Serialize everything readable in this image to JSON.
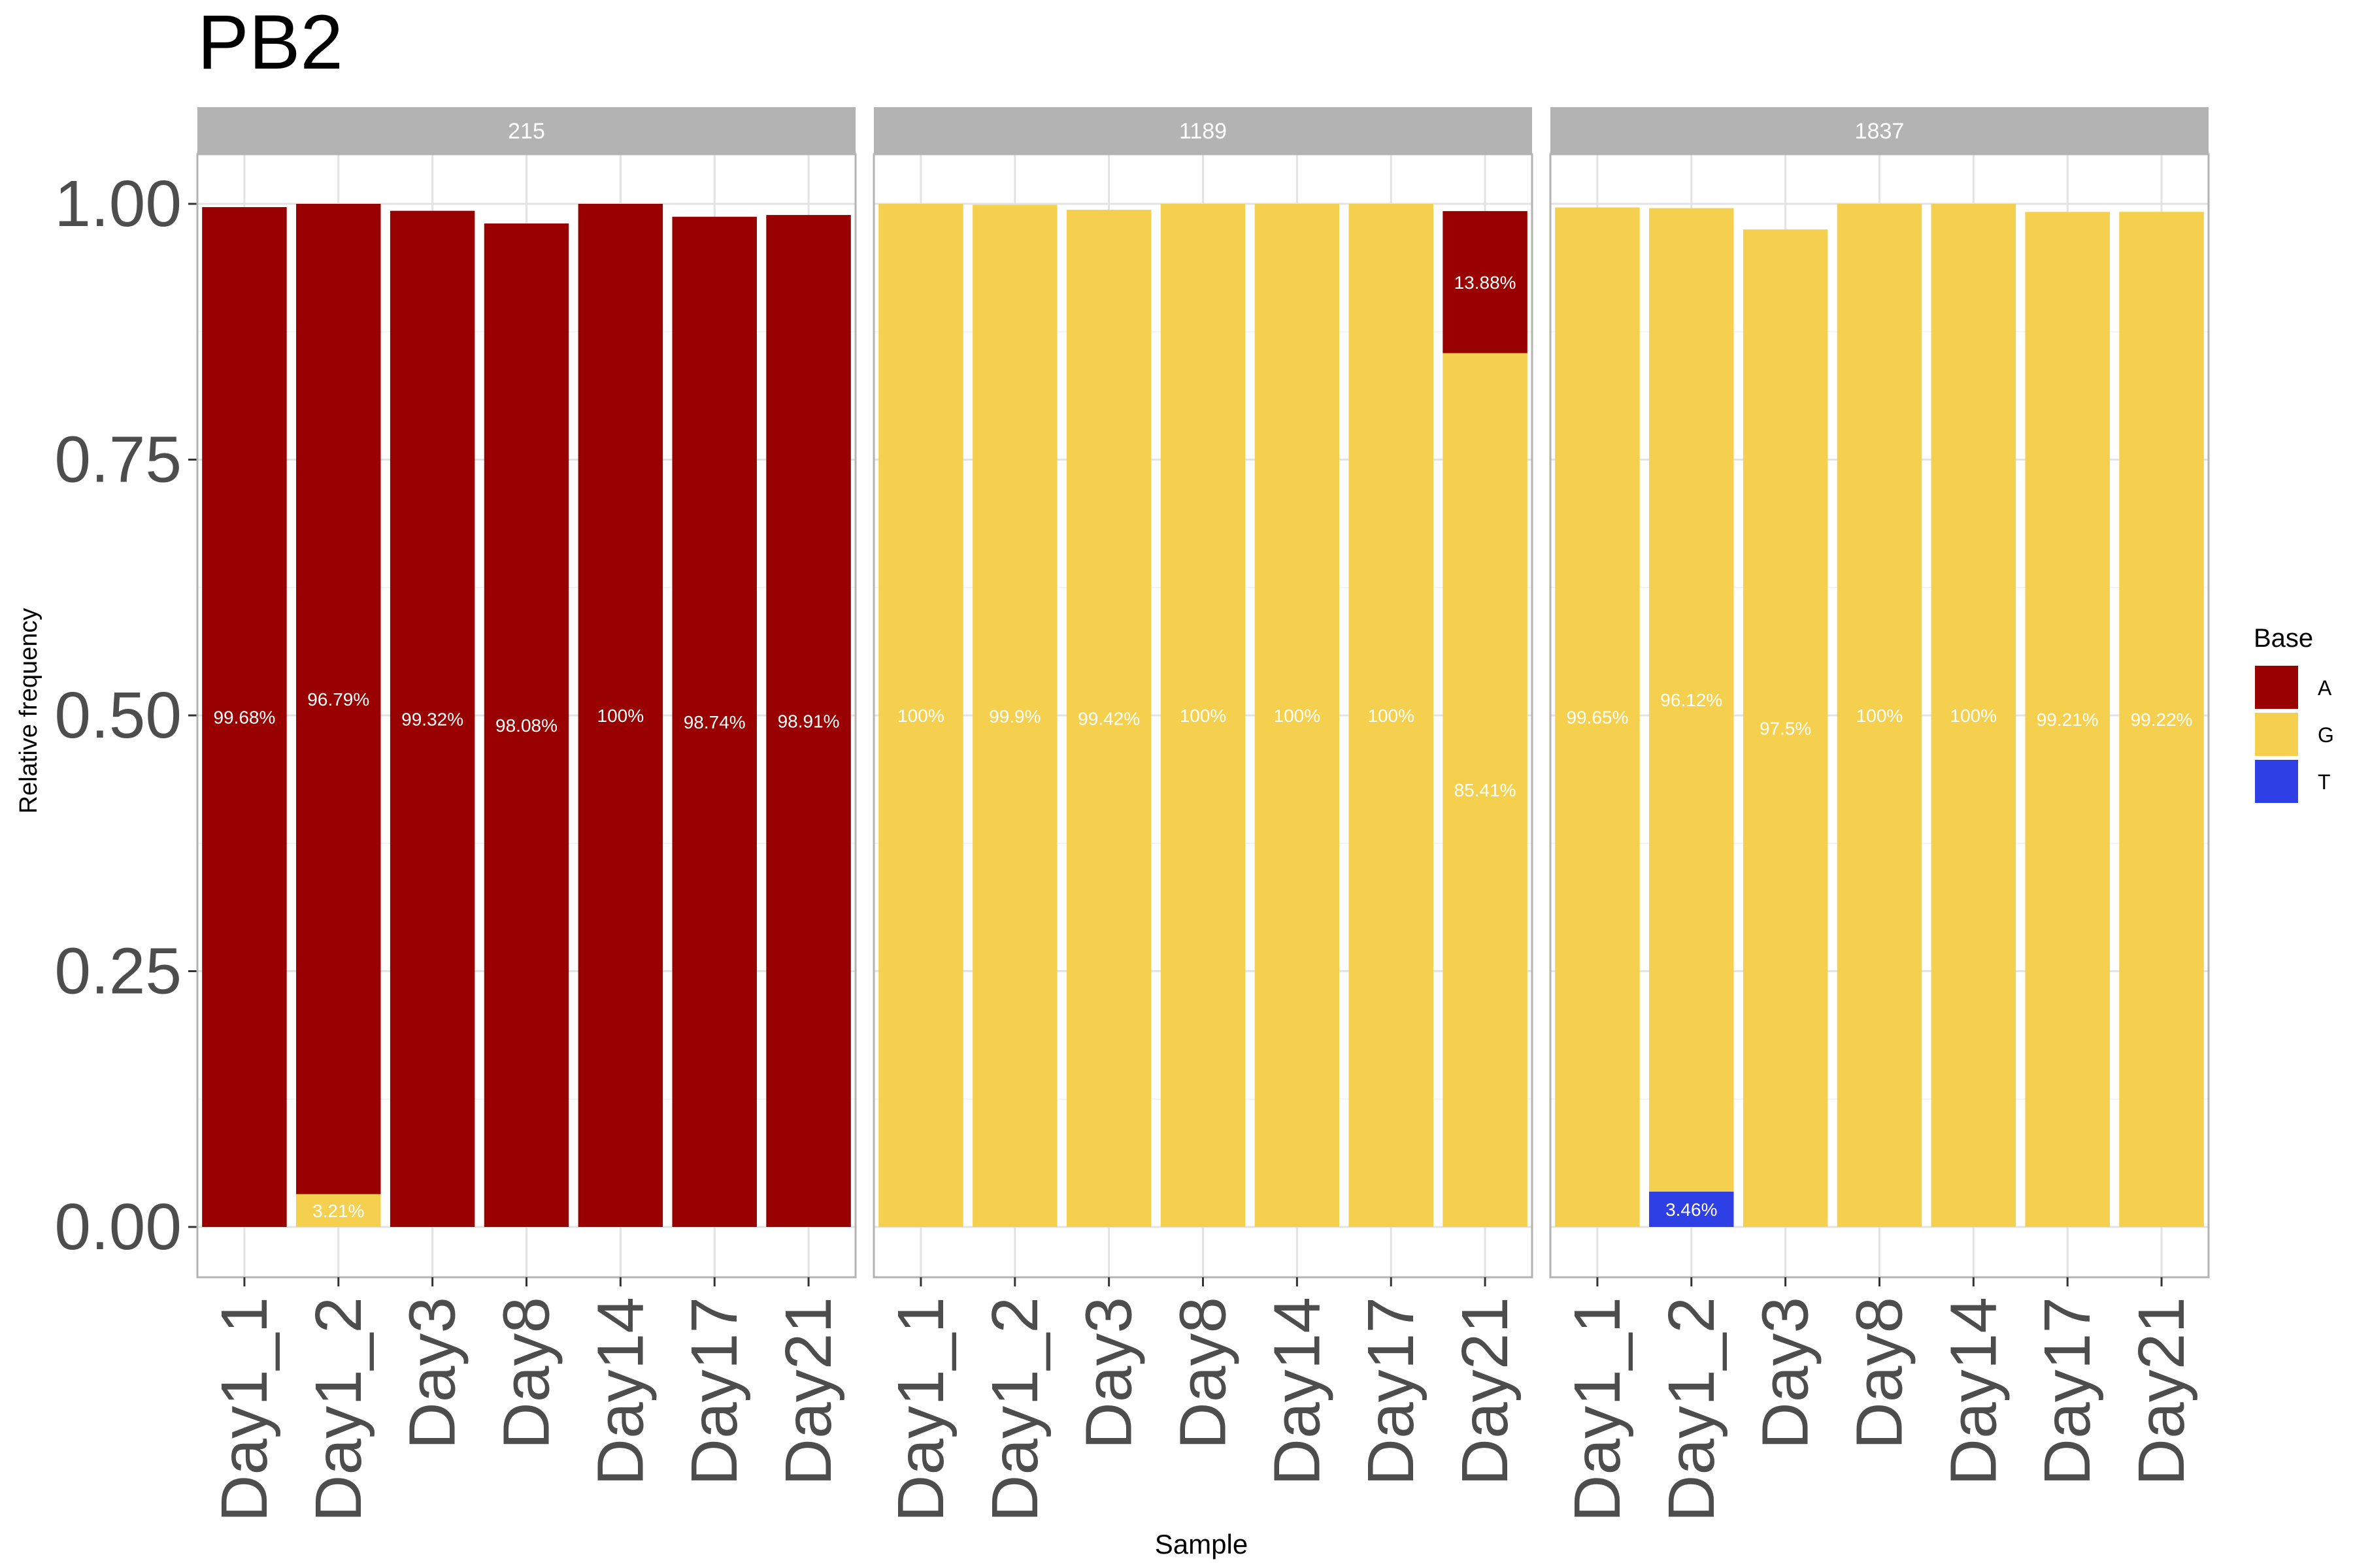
{
  "chart_data": {
    "type": "bar",
    "stacked": true,
    "title": "PB2",
    "xlabel": "Sample",
    "ylabel": "Relative frequency",
    "ylim": [
      0,
      1.0
    ],
    "yticks": [
      "0.00",
      "0.25",
      "0.50",
      "0.75",
      "1.00"
    ],
    "grid": true,
    "categories": [
      "Day1_1",
      "Day1_2",
      "Day3",
      "Day8",
      "Day14",
      "Day17",
      "Day21"
    ],
    "legend": {
      "title": "Base",
      "position": "right",
      "entries": [
        {
          "label": "A",
          "color": "#990000"
        },
        {
          "label": "G",
          "color": "#F4D04E"
        },
        {
          "label": "T",
          "color": "#2F3FE6"
        }
      ]
    },
    "panels": [
      {
        "label": "215",
        "bars": [
          [
            {
              "base": "A",
              "value": 0.9968,
              "label": "99.68%"
            }
          ],
          [
            {
              "base": "G",
              "value": 0.0321,
              "label": "3.21%"
            },
            {
              "base": "A",
              "value": 0.9679,
              "label": "96.79%"
            }
          ],
          [
            {
              "base": "A",
              "value": 0.9932,
              "label": "99.32%"
            }
          ],
          [
            {
              "base": "A",
              "value": 0.9808,
              "label": "98.08%"
            }
          ],
          [
            {
              "base": "A",
              "value": 1.0,
              "label": "100%"
            }
          ],
          [
            {
              "base": "A",
              "value": 0.9874,
              "label": "98.74%"
            }
          ],
          [
            {
              "base": "A",
              "value": 0.9891,
              "label": "98.91%"
            }
          ]
        ]
      },
      {
        "label": "1189",
        "bars": [
          [
            {
              "base": "G",
              "value": 1.0,
              "label": "100%"
            }
          ],
          [
            {
              "base": "G",
              "value": 0.999,
              "label": "99.9%"
            }
          ],
          [
            {
              "base": "G",
              "value": 0.9942,
              "label": "99.42%"
            }
          ],
          [
            {
              "base": "G",
              "value": 1.0,
              "label": "100%"
            }
          ],
          [
            {
              "base": "G",
              "value": 1.0,
              "label": "100%"
            }
          ],
          [
            {
              "base": "G",
              "value": 1.0,
              "label": "100%"
            }
          ],
          [
            {
              "base": "G",
              "value": 0.8541,
              "label": "85.41%"
            },
            {
              "base": "A",
              "value": 0.1388,
              "label": "13.88%"
            }
          ]
        ]
      },
      {
        "label": "1837",
        "bars": [
          [
            {
              "base": "G",
              "value": 0.9965,
              "label": "99.65%"
            }
          ],
          [
            {
              "base": "T",
              "value": 0.0346,
              "label": "3.46%"
            },
            {
              "base": "G",
              "value": 0.9612,
              "label": "96.12%"
            }
          ],
          [
            {
              "base": "G",
              "value": 0.975,
              "label": "97.5%"
            }
          ],
          [
            {
              "base": "G",
              "value": 1.0,
              "label": "100%"
            }
          ],
          [
            {
              "base": "G",
              "value": 1.0,
              "label": "100%"
            }
          ],
          [
            {
              "base": "G",
              "value": 0.9921,
              "label": "99.21%"
            }
          ],
          [
            {
              "base": "G",
              "value": 0.9922,
              "label": "99.22%"
            }
          ]
        ]
      }
    ]
  }
}
